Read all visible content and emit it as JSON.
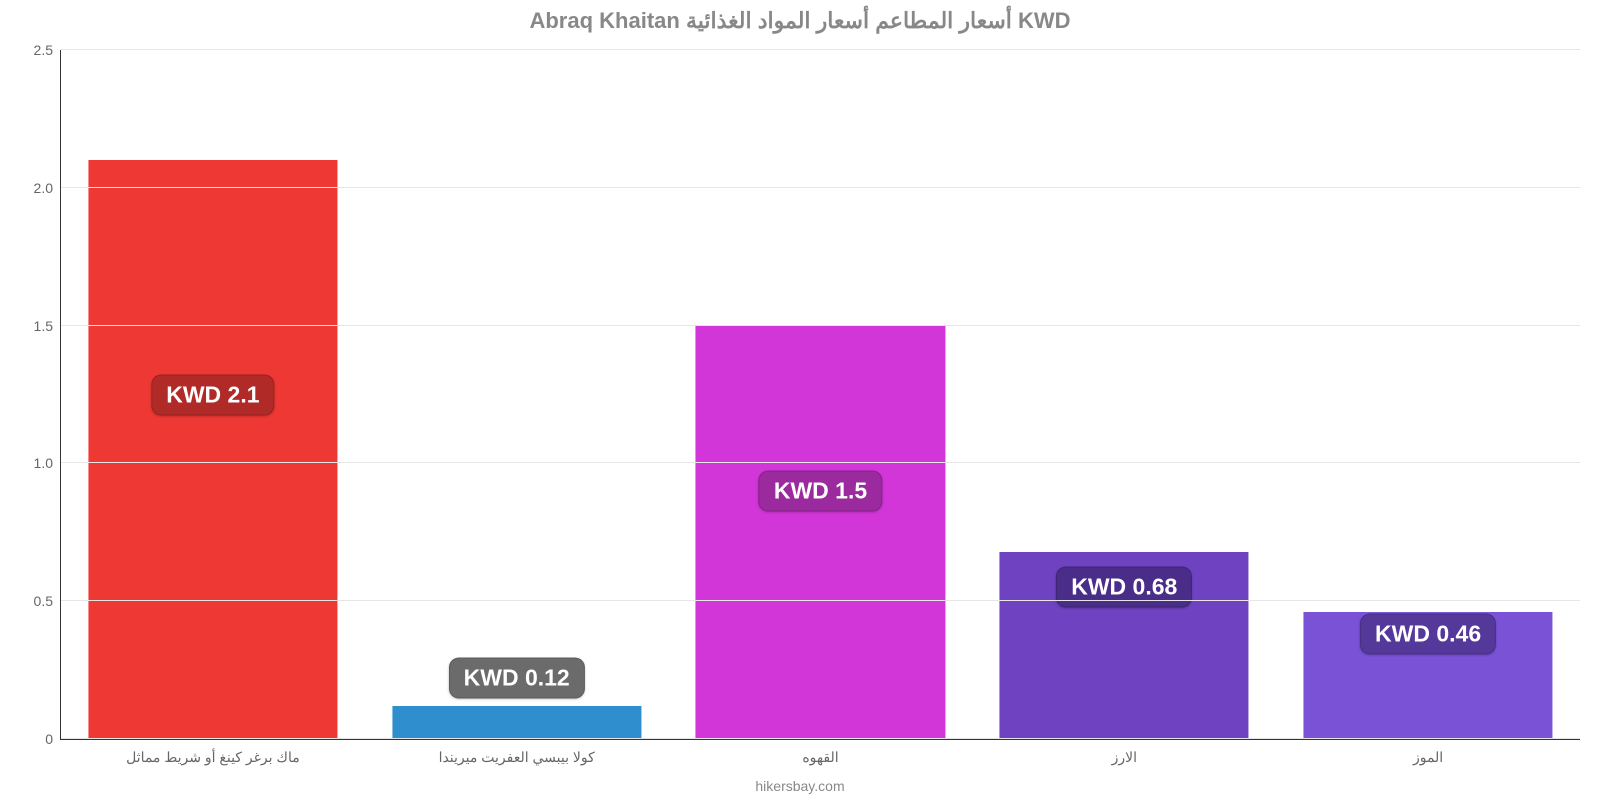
{
  "chart": {
    "type": "bar",
    "title": "Abraq Khaitan أسعار المطاعم أسعار المواد الغذائية KWD",
    "title_fontsize": 22,
    "title_color": "#888888",
    "source": "hikersbay.com",
    "background_color": "#ffffff",
    "grid_color": "#e6e6e6",
    "axis_color": "#333333",
    "tick_color": "#666666",
    "ylim": [
      0,
      2.5
    ],
    "ytick_step": 0.5,
    "yticks": [
      "0",
      "0.5",
      "1.0",
      "1.5",
      "2.0",
      "2.5"
    ],
    "bar_width_pct": 82,
    "value_badge_fontsize": 23,
    "categories": [
      "ماك برغر كينغ أو شريط مماثل",
      "كولا بيبسي العفريت ميريندا",
      "القهوه",
      "الارز",
      "الموز"
    ],
    "values": [
      2.1,
      0.12,
      1.5,
      0.68,
      0.46
    ],
    "value_labels": [
      "KWD 2.1",
      "KWD 0.12",
      "KWD 1.5",
      "KWD 0.68",
      "KWD 0.46"
    ],
    "bar_colors": [
      "#ed3833",
      "#2e8ece",
      "#d235d8",
      "#6f42c1",
      "#7a52d6"
    ],
    "badge_colors": [
      "#b02a27",
      "#6b6b6b",
      "#9a2a9e",
      "#4a2c89",
      "#55399a"
    ],
    "badge_anchor_value": [
      1.25,
      0.22,
      0.9,
      0.55,
      0.38
    ]
  }
}
